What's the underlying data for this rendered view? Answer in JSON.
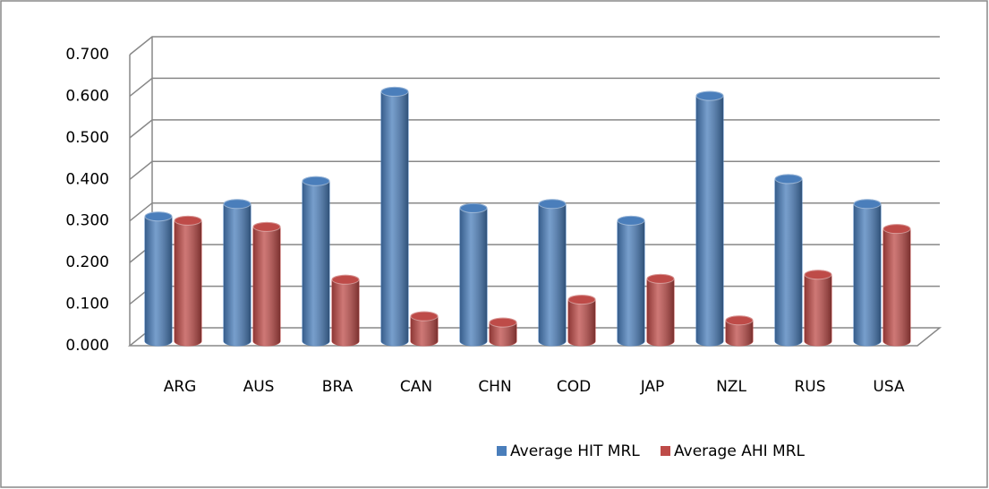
{
  "chart_data": {
    "type": "bar3d",
    "categories": [
      "ARG",
      "AUS",
      "BRA",
      "CAN",
      "CHN",
      "COD",
      "JAP",
      "NZL",
      "RUS",
      "USA"
    ],
    "series": [
      {
        "name": "Average HIT MRL",
        "color": "#4a7ebb",
        "values": [
          0.3,
          0.33,
          0.385,
          0.6,
          0.32,
          0.33,
          0.29,
          0.59,
          0.39,
          0.33
        ]
      },
      {
        "name": "Average AHI MRL",
        "color": "#be4b48",
        "values": [
          0.29,
          0.275,
          0.148,
          0.06,
          0.045,
          0.1,
          0.15,
          0.05,
          0.16,
          0.27
        ]
      }
    ],
    "ylim": [
      0,
      0.7
    ],
    "yticks": [
      {
        "value": 0,
        "label": "0.000"
      },
      {
        "value": 0.1,
        "label": "0.100"
      },
      {
        "value": 0.2,
        "label": "0.200"
      },
      {
        "value": 0.3,
        "label": "0.300"
      },
      {
        "value": 0.4,
        "label": "0.400"
      },
      {
        "value": 0.5,
        "label": "0.500"
      },
      {
        "value": 0.6,
        "label": "0.600"
      },
      {
        "value": 0.7,
        "label": "0.700"
      }
    ],
    "grid": true,
    "legend": "bottom"
  }
}
